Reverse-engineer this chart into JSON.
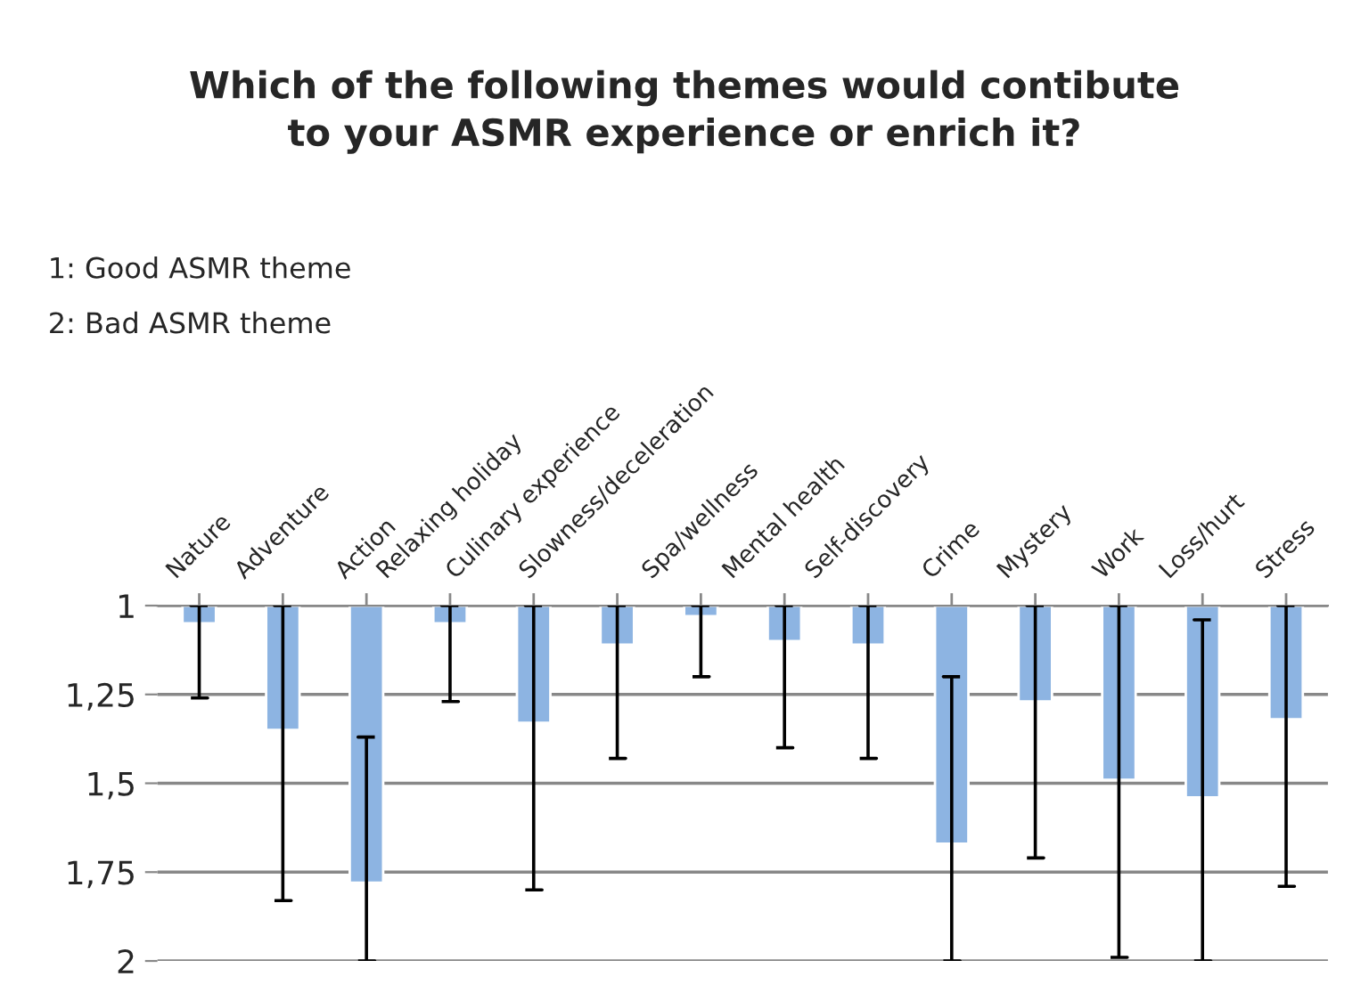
{
  "chart_data": {
    "type": "bar",
    "title": "Which of the following themes would contibute\nto your ASMR experience or enrich it?",
    "categories": [
      "Nature",
      "Adventure",
      "Action",
      "Relaxing holiday",
      "Culinary experience",
      "Slowness/deceleration",
      "Spa/wellness",
      "Mental health",
      "Self-discovery",
      "Crime",
      "Mystery",
      "Work",
      "Loss/hurt",
      "Stress"
    ],
    "values": [
      1.05,
      1.35,
      1.78,
      1.05,
      1.33,
      1.11,
      1.03,
      1.1,
      1.11,
      1.67,
      1.27,
      1.49,
      1.54,
      1.32
    ],
    "errors": [
      [
        1,
        1.26
      ],
      [
        1,
        1.83
      ],
      [
        1.37,
        2
      ],
      [
        1,
        1.27
      ],
      [
        1,
        1.8
      ],
      [
        1,
        1.43
      ],
      [
        1,
        1.2
      ],
      [
        1,
        1.4
      ],
      [
        1,
        1.43
      ],
      [
        1.2,
        2
      ],
      [
        1,
        1.71
      ],
      [
        1,
        1.99
      ],
      [
        1.04,
        2
      ],
      [
        1,
        1.79
      ]
    ],
    "color": "#8db4e2",
    "ylim": [
      2,
      1
    ],
    "yticks": [
      {
        "value": 1,
        "label": "1"
      },
      {
        "value": 1.25,
        "label": "1,25"
      },
      {
        "value": 1.5,
        "label": "1,5"
      },
      {
        "value": 1.75,
        "label": "1,75"
      },
      {
        "value": 2,
        "label": "2"
      }
    ],
    "grid": "y",
    "annotations": [
      "1: Good ASMR theme",
      "2: Bad ASMR theme"
    ]
  }
}
